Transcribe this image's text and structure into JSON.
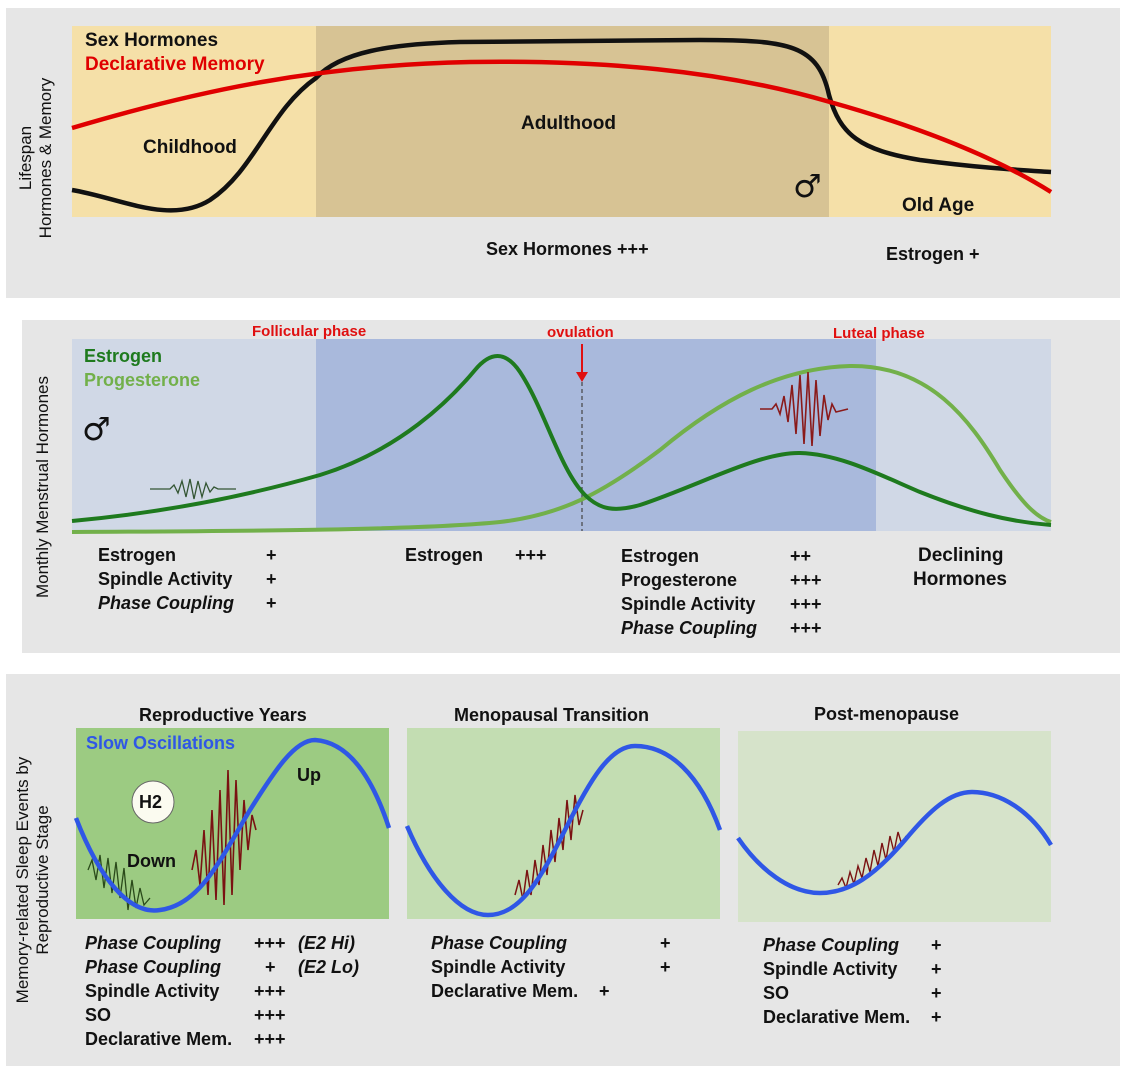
{
  "panel1": {
    "yaxis": [
      "Lifespan",
      "Hormones & Memory"
    ],
    "legend": {
      "sex_hormones": "Sex Hormones",
      "declarative_memory": "Declarative Memory"
    },
    "stages": {
      "childhood": "Childhood",
      "adulthood": "Adulthood",
      "old_age": "Old Age"
    },
    "male_symbol": "♂",
    "footer": {
      "adult": "Sex Hormones +++",
      "old": "Estrogen +"
    }
  },
  "panel2": {
    "yaxis": "Monthly Menstrual Hormones",
    "legend": {
      "estrogen": "Estrogen",
      "progesterone": "Progesterone"
    },
    "phases": {
      "follicular": "Follicular phase",
      "ovulation": "ovulation",
      "luteal": "Luteal phase"
    },
    "male_symbol": "♂",
    "table1": {
      "labels": [
        "Estrogen",
        "Spindle Activity",
        "Phase Coupling"
      ],
      "values": [
        "+",
        "+",
        "+"
      ]
    },
    "table2": {
      "label": "Estrogen",
      "value": "+++"
    },
    "table3": {
      "labels": [
        "Estrogen",
        "Progesterone",
        "Spindle Activity",
        "Phase Coupling"
      ],
      "values": [
        "++",
        "+++",
        "+++",
        "+++"
      ]
    },
    "declining": [
      "Declining",
      "Hormones"
    ]
  },
  "panel3": {
    "yaxis": [
      "Memory-related Sleep Events by",
      "Reproductive Stage"
    ],
    "titles": {
      "reproductive": "Reproductive Years",
      "menopausal": "Menopausal Transition",
      "post": "Post-menopause"
    },
    "slow_osc": "Slow Oscillations",
    "h2": "H2",
    "up": "Up",
    "down": "Down",
    "table_repro": {
      "labels": [
        "Phase Coupling",
        "Phase Coupling",
        "Spindle Activity",
        "SO",
        "Declarative Mem."
      ],
      "values": [
        "+++",
        "+",
        "+++",
        "+++",
        "+++"
      ],
      "notes": [
        "(E2 Hi)",
        "(E2 Lo)"
      ]
    },
    "table_meno": {
      "labels": [
        "Phase Coupling",
        "Spindle Activity",
        "Declarative Mem."
      ],
      "values": [
        "+",
        "+",
        "+"
      ]
    },
    "table_post": {
      "labels": [
        "Phase Coupling",
        "Spindle Activity",
        "SO",
        "Declarative Mem."
      ],
      "values": [
        "+",
        "+",
        "+",
        "+"
      ]
    }
  },
  "colors": {
    "panel_bg": "#e6e6e6",
    "light_yellow": "#f5e0a8",
    "adult_tan": "#d7c394",
    "black_curve": "#111111",
    "red_curve": "#e00000",
    "pale_blue": "#d0d8e6",
    "mid_blue": "#a9b9dc",
    "dark_green": "#1e7a1e",
    "light_green": "#72b04a",
    "phase_red": "#e01010",
    "so_blue": "#2f57e6",
    "repro_bg": "#9ccb82",
    "meno_bg": "#c3ddb2",
    "post_bg": "#d6e3ca",
    "spindle": "#7a1212"
  }
}
